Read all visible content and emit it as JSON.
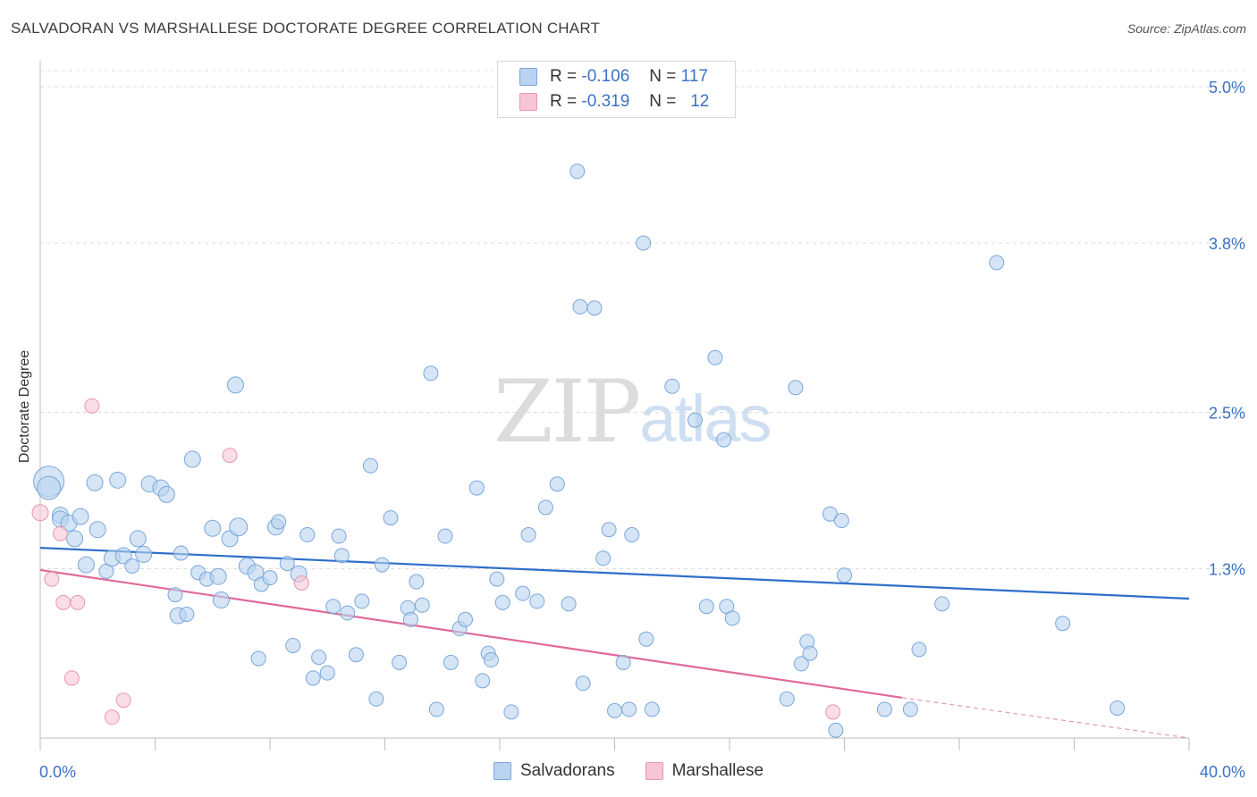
{
  "header": {
    "title": "SALVADORAN VS MARSHALLESE DOCTORATE DEGREE CORRELATION CHART",
    "source": "Source: ZipAtlas.com"
  },
  "watermark": {
    "zip": "ZIP",
    "atlas": "atlas"
  },
  "legend": {
    "rows": [
      {
        "r_label": "R =",
        "r_value": "-0.106",
        "n_label": "N =",
        "n_value": "117"
      },
      {
        "r_label": "R =",
        "r_value": "-0.319",
        "n_label": "N =",
        "n_value": "12"
      }
    ]
  },
  "bottom_legend": {
    "items": [
      "Salvadorans",
      "Marshallese"
    ]
  },
  "colors": {
    "blue_fill": "#b9d3f0",
    "blue_stroke": "#7aa6dc",
    "blue_line": "#2e6fc9",
    "pink_fill": "#f7c6d5",
    "pink_stroke": "#e896b0",
    "pink_line": "#e0699a",
    "axis_label": "#3b72c4"
  },
  "chart_data": {
    "type": "scatter",
    "title": "SALVADORAN VS MARSHALLESE DOCTORATE DEGREE CORRELATION CHART",
    "xlabel": "",
    "ylabel": "Doctorate Degree",
    "xlim": [
      0,
      40
    ],
    "ylim": [
      0,
      5.2
    ],
    "x_tick_labels": [
      "0.0%",
      "40.0%"
    ],
    "y_ticks": [
      1.3,
      2.5,
      3.8,
      5.0
    ],
    "y_tick_labels": [
      "1.3%",
      "2.5%",
      "3.8%",
      "5.0%"
    ],
    "grid": true,
    "series": [
      {
        "name": "Salvadorans",
        "color": "#7aa6dc",
        "r": -0.106,
        "n": 117,
        "trend": {
          "x": [
            0,
            40
          ],
          "y": [
            1.46,
            1.07
          ]
        },
        "points": [
          [
            0.3,
            1.97,
            16
          ],
          [
            0.3,
            1.92,
            12
          ],
          [
            0.7,
            1.71,
            8
          ],
          [
            0.7,
            1.68,
            8
          ],
          [
            1.0,
            1.65,
            8
          ],
          [
            1.4,
            1.7,
            8
          ],
          [
            1.2,
            1.53,
            8
          ],
          [
            1.6,
            1.33,
            8
          ],
          [
            1.9,
            1.96,
            8
          ],
          [
            2.0,
            1.6,
            8
          ],
          [
            2.3,
            1.28,
            7
          ],
          [
            2.5,
            1.38,
            8
          ],
          [
            2.7,
            1.98,
            8
          ],
          [
            2.9,
            1.4,
            8
          ],
          [
            3.2,
            1.32,
            7
          ],
          [
            3.4,
            1.53,
            8
          ],
          [
            3.6,
            1.41,
            8
          ],
          [
            3.8,
            1.95,
            8
          ],
          [
            4.2,
            1.92,
            8
          ],
          [
            4.4,
            1.87,
            8
          ],
          [
            4.7,
            1.1,
            7
          ],
          [
            4.8,
            0.94,
            8
          ],
          [
            4.9,
            1.42,
            7
          ],
          [
            5.1,
            0.95,
            7
          ],
          [
            5.3,
            2.14,
            8
          ],
          [
            5.5,
            1.27,
            7
          ],
          [
            5.8,
            1.22,
            7
          ],
          [
            6.0,
            1.61,
            8
          ],
          [
            6.2,
            1.24,
            8
          ],
          [
            6.3,
            1.06,
            8
          ],
          [
            6.6,
            1.53,
            8
          ],
          [
            6.8,
            2.71,
            8
          ],
          [
            6.9,
            1.62,
            9
          ],
          [
            7.2,
            1.32,
            8
          ],
          [
            7.5,
            1.27,
            8
          ],
          [
            7.6,
            0.61,
            7
          ],
          [
            7.7,
            1.18,
            7
          ],
          [
            8.0,
            1.23,
            7
          ],
          [
            8.2,
            1.62,
            8
          ],
          [
            8.3,
            1.66,
            7
          ],
          [
            8.6,
            1.34,
            7
          ],
          [
            8.8,
            0.71,
            7
          ],
          [
            9.0,
            1.26,
            8
          ],
          [
            9.3,
            1.56,
            7
          ],
          [
            9.5,
            0.46,
            7
          ],
          [
            9.7,
            0.62,
            7
          ],
          [
            10.0,
            0.5,
            7
          ],
          [
            10.2,
            1.01,
            7
          ],
          [
            10.4,
            1.55,
            7
          ],
          [
            10.5,
            1.4,
            7
          ],
          [
            10.7,
            0.96,
            7
          ],
          [
            11.0,
            0.64,
            7
          ],
          [
            11.2,
            1.05,
            7
          ],
          [
            11.5,
            2.09,
            7
          ],
          [
            11.7,
            0.3,
            7
          ],
          [
            11.9,
            1.33,
            7
          ],
          [
            12.2,
            1.69,
            7
          ],
          [
            12.5,
            0.58,
            7
          ],
          [
            12.8,
            1.0,
            7
          ],
          [
            12.9,
            0.91,
            7
          ],
          [
            13.1,
            1.2,
            7
          ],
          [
            13.3,
            1.02,
            7
          ],
          [
            13.6,
            2.8,
            7
          ],
          [
            13.8,
            0.22,
            7
          ],
          [
            14.1,
            1.55,
            7
          ],
          [
            14.3,
            0.58,
            7
          ],
          [
            14.6,
            0.84,
            7
          ],
          [
            14.8,
            0.91,
            7
          ],
          [
            15.2,
            1.92,
            7
          ],
          [
            15.4,
            0.44,
            7
          ],
          [
            15.6,
            0.65,
            7
          ],
          [
            15.7,
            0.6,
            7
          ],
          [
            15.9,
            1.22,
            7
          ],
          [
            16.1,
            1.04,
            7
          ],
          [
            16.4,
            0.2,
            7
          ],
          [
            16.8,
            1.11,
            7
          ],
          [
            17.0,
            1.56,
            7
          ],
          [
            17.3,
            1.05,
            7
          ],
          [
            17.6,
            1.77,
            7
          ],
          [
            18.0,
            1.95,
            7
          ],
          [
            18.4,
            1.03,
            7
          ],
          [
            18.7,
            4.35,
            7
          ],
          [
            18.8,
            3.31,
            7
          ],
          [
            18.9,
            0.42,
            7
          ],
          [
            19.3,
            3.3,
            7
          ],
          [
            19.6,
            1.38,
            7
          ],
          [
            19.8,
            1.6,
            7
          ],
          [
            20.0,
            0.21,
            7
          ],
          [
            20.3,
            0.58,
            7
          ],
          [
            20.5,
            0.22,
            7
          ],
          [
            20.6,
            1.56,
            7
          ],
          [
            21.0,
            3.8,
            7
          ],
          [
            21.1,
            0.76,
            7
          ],
          [
            21.3,
            0.22,
            7
          ],
          [
            22.0,
            2.7,
            7
          ],
          [
            22.8,
            2.44,
            7
          ],
          [
            23.2,
            1.01,
            7
          ],
          [
            23.5,
            2.92,
            7
          ],
          [
            23.8,
            2.29,
            7
          ],
          [
            23.9,
            1.01,
            7
          ],
          [
            24.1,
            0.92,
            7
          ],
          [
            26.0,
            0.3,
            7
          ],
          [
            26.3,
            2.69,
            7
          ],
          [
            26.5,
            0.57,
            7
          ],
          [
            26.7,
            0.74,
            7
          ],
          [
            26.8,
            0.65,
            7
          ],
          [
            27.5,
            1.72,
            7
          ],
          [
            27.9,
            1.67,
            7
          ],
          [
            27.7,
            0.06,
            7
          ],
          [
            28.0,
            1.25,
            7
          ],
          [
            29.4,
            0.22,
            7
          ],
          [
            30.3,
            0.22,
            7
          ],
          [
            30.6,
            0.68,
            7
          ],
          [
            31.4,
            1.03,
            7
          ],
          [
            33.3,
            3.65,
            7
          ],
          [
            35.6,
            0.88,
            7
          ],
          [
            37.5,
            0.23,
            7
          ]
        ]
      },
      {
        "name": "Marshallese",
        "color": "#e896b0",
        "r": -0.319,
        "n": 12,
        "trend": {
          "x": [
            0,
            30
          ],
          "y": [
            1.29,
            0.31
          ]
        },
        "trend_dashed": {
          "x": [
            30,
            40
          ],
          "y": [
            0.31,
            0.0
          ]
        },
        "points": [
          [
            0.0,
            1.73,
            8
          ],
          [
            0.4,
            1.22,
            7
          ],
          [
            0.7,
            1.57,
            7
          ],
          [
            0.8,
            1.04,
            7
          ],
          [
            1.1,
            0.46,
            7
          ],
          [
            1.3,
            1.04,
            7
          ],
          [
            1.8,
            2.55,
            7
          ],
          [
            2.5,
            0.16,
            7
          ],
          [
            2.9,
            0.29,
            7
          ],
          [
            6.6,
            2.17,
            7
          ],
          [
            9.1,
            1.19,
            7
          ],
          [
            27.6,
            0.2,
            7
          ]
        ]
      }
    ]
  }
}
